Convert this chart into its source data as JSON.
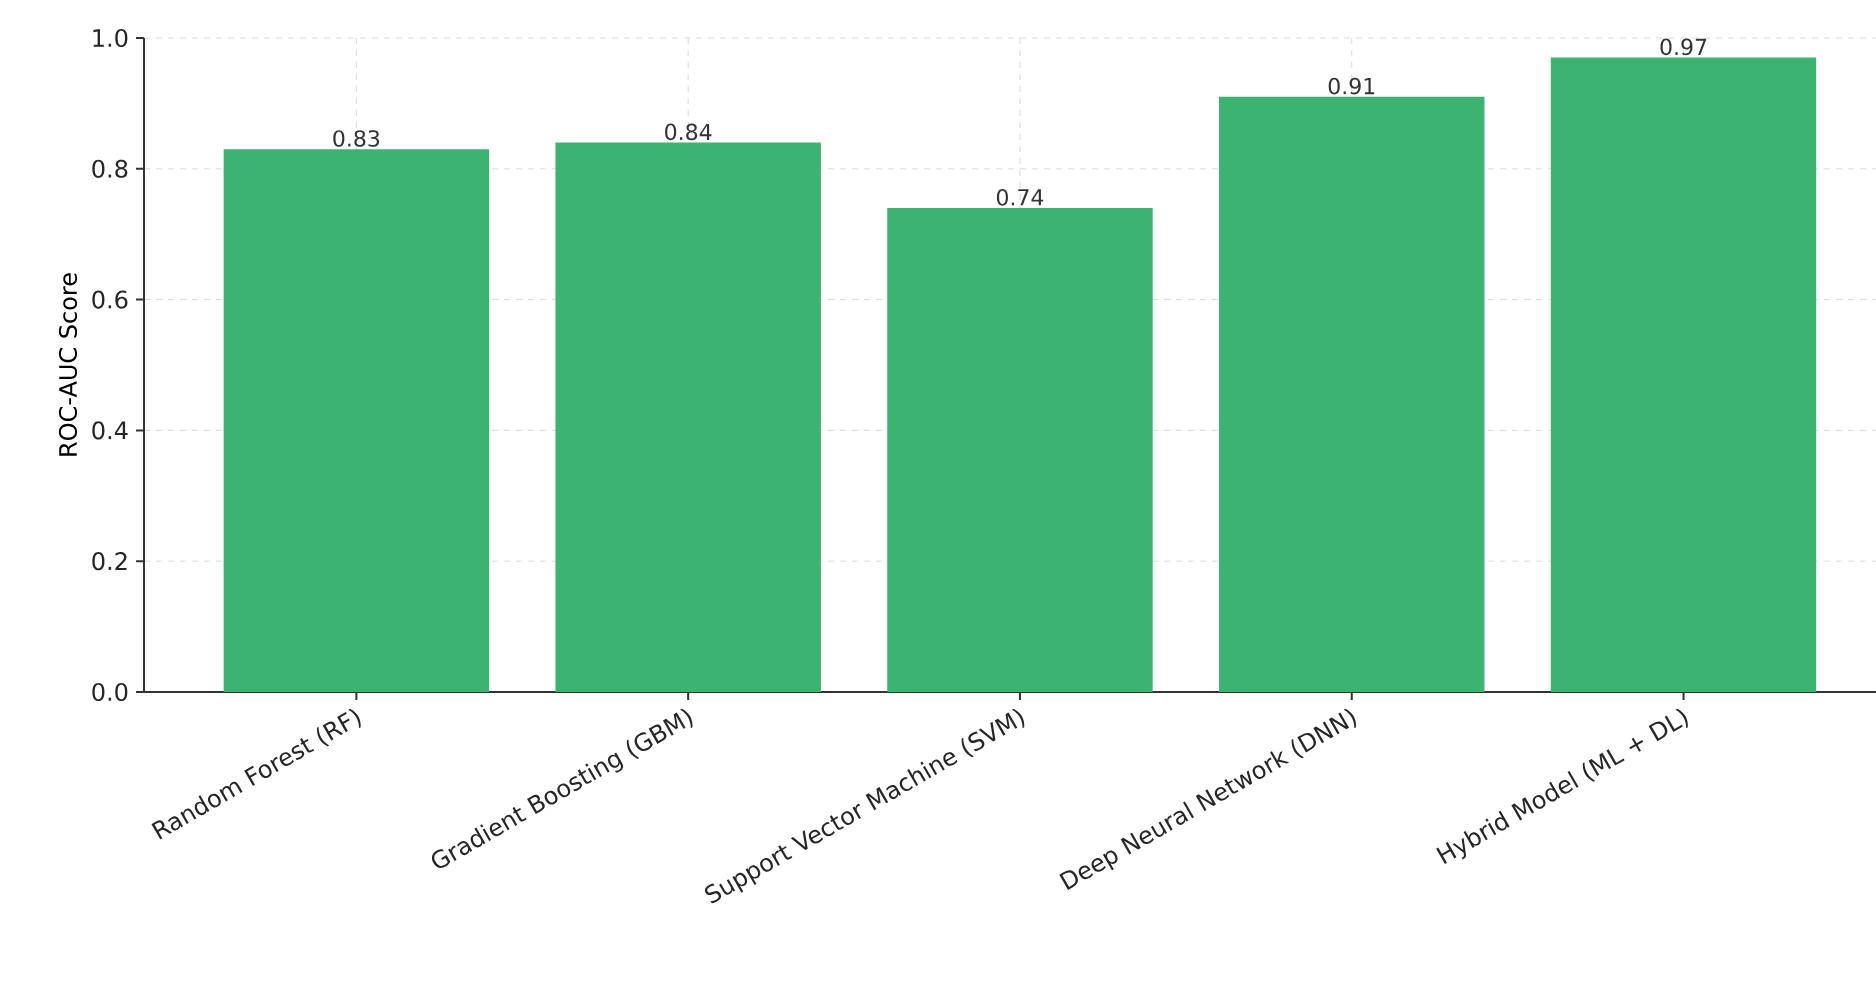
{
  "chart_data": {
    "type": "bar",
    "ylabel": "ROC-AUC Score",
    "categories": [
      "Random Forest (RF)",
      "Gradient Boosting (GBM)",
      "Support Vector Machine (SVM)",
      "Deep Neural Network (DNN)",
      "Hybrid Model (ML + DL)"
    ],
    "values": [
      0.83,
      0.84,
      0.74,
      0.91,
      0.97
    ],
    "color": "#3cb371",
    "ylim": [
      0,
      1.0
    ],
    "yticks": [
      {
        "value": 0,
        "label": "0.0"
      },
      0.2,
      0.4,
      0.6,
      0.8,
      {
        "value": 1.0,
        "label": "1.0"
      }
    ],
    "grid": true,
    "data_labels": true
  }
}
